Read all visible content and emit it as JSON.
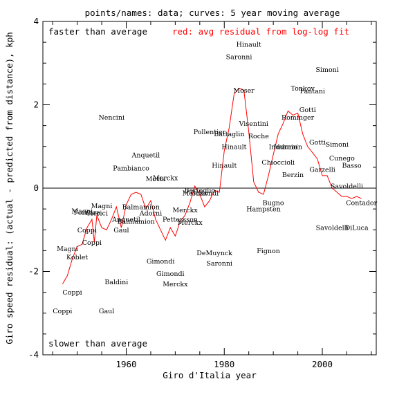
{
  "chart_data": {
    "type": "scatter",
    "title": "points/names: data; curves: 5 year moving average",
    "xlabel": "Giro d'Italia year",
    "ylabel": "Giro speed residual: (actual - predicted from distance), kph",
    "xlim": [
      1943,
      2011
    ],
    "ylim": [
      -4,
      4
    ],
    "x_ticks": [
      1960,
      1980,
      2000
    ],
    "y_ticks": [
      -4,
      -2,
      0,
      2,
      4
    ],
    "zero_line": true,
    "annotations": {
      "top_left": "faster than average",
      "bottom_left": "slower than average",
      "legend_red": "red: avg residual from log-log fit"
    },
    "points": [
      {
        "name": "Coppi",
        "x": 1947,
        "y": -2.95
      },
      {
        "name": "Coppi",
        "x": 1949,
        "y": -2.5
      },
      {
        "name": "Magni",
        "x": 1948,
        "y": -1.45
      },
      {
        "name": "Koblet",
        "x": 1950,
        "y": -1.65
      },
      {
        "name": "Coppi",
        "x": 1952,
        "y": -1.0
      },
      {
        "name": "Coppi",
        "x": 1953,
        "y": -1.3
      },
      {
        "name": "Magni",
        "x": 1951,
        "y": -0.55
      },
      {
        "name": "Fornara",
        "x": 1952,
        "y": -0.58
      },
      {
        "name": "Clerici",
        "x": 1954,
        "y": -0.6
      },
      {
        "name": "Magni",
        "x": 1955,
        "y": -0.42
      },
      {
        "name": "Gaul",
        "x": 1956,
        "y": -2.95
      },
      {
        "name": "Baldini",
        "x": 1958,
        "y": -2.25
      },
      {
        "name": "Nencini",
        "x": 1957,
        "y": 1.7
      },
      {
        "name": "Anquetil",
        "x": 1960,
        "y": -0.75
      },
      {
        "name": "Gaul",
        "x": 1959,
        "y": -1.0
      },
      {
        "name": "Pambianco",
        "x": 1961,
        "y": 0.48
      },
      {
        "name": "Balmamion",
        "x": 1963,
        "y": -0.45
      },
      {
        "name": "Balmamion",
        "x": 1962,
        "y": -0.8
      },
      {
        "name": "Anquetil",
        "x": 1964,
        "y": 0.8
      },
      {
        "name": "Adorni",
        "x": 1965,
        "y": -0.6
      },
      {
        "name": "Motta",
        "x": 1966,
        "y": 0.22
      },
      {
        "name": "Gimondi",
        "x": 1967,
        "y": -1.75
      },
      {
        "name": "Merckx",
        "x": 1968,
        "y": 0.25
      },
      {
        "name": "Gimondi",
        "x": 1969,
        "y": -2.05
      },
      {
        "name": "Merckx",
        "x": 1970,
        "y": -2.3
      },
      {
        "name": "Pettersson",
        "x": 1971,
        "y": -0.75
      },
      {
        "name": "Merckx",
        "x": 1972,
        "y": -0.52
      },
      {
        "name": "Merckx",
        "x": 1973,
        "y": -0.82
      },
      {
        "name": "Merckx",
        "x": 1974,
        "y": -0.12
      },
      {
        "name": "Bertoglio",
        "x": 1975,
        "y": -0.05
      },
      {
        "name": "Gimondi",
        "x": 1976,
        "y": -0.12
      },
      {
        "name": "Pollentier",
        "x": 1977,
        "y": 1.35
      },
      {
        "name": "DeMuynck",
        "x": 1978,
        "y": -1.55
      },
      {
        "name": "Saronni",
        "x": 1979,
        "y": -1.8
      },
      {
        "name": "Hinault",
        "x": 1980,
        "y": 0.55
      },
      {
        "name": "Battaglin",
        "x": 1981,
        "y": 1.3
      },
      {
        "name": "Hinault",
        "x": 1982,
        "y": 1.0
      },
      {
        "name": "Saronni",
        "x": 1983,
        "y": 3.15
      },
      {
        "name": "Moser",
        "x": 1984,
        "y": 2.35
      },
      {
        "name": "Hinault",
        "x": 1985,
        "y": 3.45
      },
      {
        "name": "Visentini",
        "x": 1986,
        "y": 1.55
      },
      {
        "name": "Roche",
        "x": 1987,
        "y": 1.25
      },
      {
        "name": "Hampsten",
        "x": 1988,
        "y": -0.5
      },
      {
        "name": "Fignon",
        "x": 1989,
        "y": -1.5
      },
      {
        "name": "Bugno",
        "x": 1990,
        "y": -0.35
      },
      {
        "name": "Chioccioli",
        "x": 1991,
        "y": 0.62
      },
      {
        "name": "Indurain",
        "x": 1992,
        "y": 1.0
      },
      {
        "name": "Indurain",
        "x": 1993,
        "y": 1.0
      },
      {
        "name": "Berzin",
        "x": 1994,
        "y": 0.32
      },
      {
        "name": "Rominger",
        "x": 1995,
        "y": 1.7
      },
      {
        "name": "Tonkov",
        "x": 1996,
        "y": 2.4
      },
      {
        "name": "Gotti",
        "x": 1997,
        "y": 1.88
      },
      {
        "name": "Pantani",
        "x": 1998,
        "y": 2.33
      },
      {
        "name": "Gotti",
        "x": 1999,
        "y": 1.1
      },
      {
        "name": "Garzelli",
        "x": 2000,
        "y": 0.45
      },
      {
        "name": "Simoni",
        "x": 2001,
        "y": 2.85
      },
      {
        "name": "Savoldelli",
        "x": 2002,
        "y": -0.95
      },
      {
        "name": "Simoni",
        "x": 2003,
        "y": 1.05
      },
      {
        "name": "Cunego",
        "x": 2004,
        "y": 0.72
      },
      {
        "name": "Savoldelli",
        "x": 2005,
        "y": 0.05
      },
      {
        "name": "Basso",
        "x": 2006,
        "y": 0.55
      },
      {
        "name": "DiLuca",
        "x": 2007,
        "y": -0.95
      },
      {
        "name": "Contador",
        "x": 2008,
        "y": -0.35
      }
    ],
    "series": [
      {
        "name": "red: avg residual from log-log fit",
        "color": "#ff0000",
        "x": [
          1947,
          1948,
          1949,
          1950,
          1951,
          1952,
          1953,
          1953.5,
          1954,
          1955,
          1956,
          1957,
          1958,
          1959,
          1960,
          1961,
          1962,
          1963,
          1964,
          1965,
          1966,
          1967,
          1968,
          1969,
          1970,
          1971,
          1972,
          1973,
          1974,
          1975,
          1976,
          1977,
          1978,
          1979,
          1980,
          1981,
          1982,
          1983,
          1984,
          1985,
          1986,
          1987,
          1988,
          1989,
          1990,
          1991,
          1992,
          1993,
          1994,
          1995,
          1996,
          1997,
          1998,
          1999,
          2000,
          2001,
          2002,
          2003,
          2004,
          2005,
          2006,
          2007,
          2008
        ],
        "y": [
          -2.3,
          -2.1,
          -1.7,
          -1.4,
          -1.35,
          -0.95,
          -0.75,
          -1.3,
          -0.65,
          -0.95,
          -1.0,
          -0.75,
          -0.45,
          -0.95,
          -0.4,
          -0.15,
          -0.1,
          -0.15,
          -0.5,
          -0.3,
          -0.75,
          -1.0,
          -1.25,
          -0.95,
          -1.15,
          -0.8,
          -0.65,
          -0.35,
          0.05,
          -0.15,
          -0.45,
          -0.3,
          -0.05,
          -0.1,
          0.9,
          1.45,
          2.25,
          2.4,
          2.35,
          1.35,
          0.15,
          -0.1,
          -0.15,
          0.3,
          0.8,
          1.3,
          1.55,
          1.85,
          1.75,
          1.8,
          1.3,
          1.0,
          0.85,
          0.7,
          0.3,
          0.3,
          0.0,
          -0.1,
          -0.2,
          -0.2,
          -0.25,
          -0.2,
          -0.25
        ]
      }
    ]
  }
}
